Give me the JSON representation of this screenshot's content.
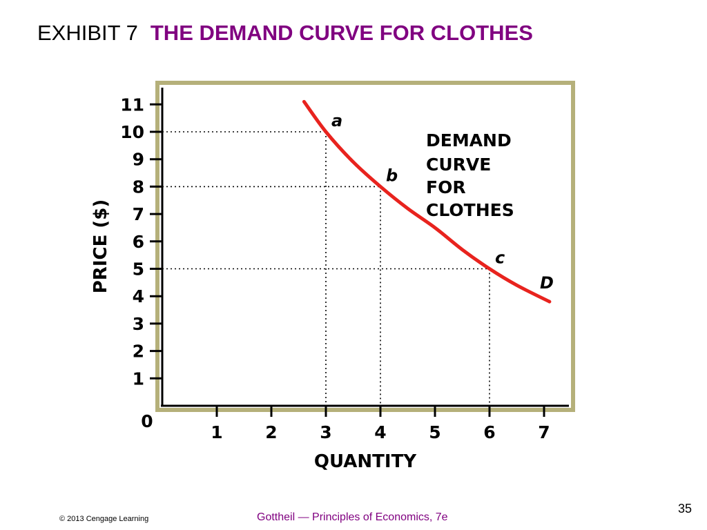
{
  "header": {
    "exhibit": "EXHIBIT 7",
    "title": "THE DEMAND CURVE FOR CLOTHES"
  },
  "footer": {
    "copyright": "© 2013 Cengage Learning",
    "book": "Gottheil — Principles of Economics, 7e",
    "slide_number": "35"
  },
  "chart_data": {
    "type": "line",
    "xlabel": "QUANTITY",
    "ylabel": "PRICE ($)",
    "xlim": [
      0,
      7.6
    ],
    "ylim": [
      0,
      11.4
    ],
    "x_ticks": [
      "1",
      "2",
      "3",
      "4",
      "5",
      "6",
      "7"
    ],
    "y_ticks": [
      "1",
      "2",
      "3",
      "4",
      "5",
      "6",
      "7",
      "8",
      "9",
      "10",
      "11"
    ],
    "origin_label": "0",
    "grid": false,
    "series": [
      {
        "name": "D",
        "color": "#e8231e",
        "x": [
          2.6,
          3.0,
          3.5,
          4.0,
          4.5,
          5.0,
          5.5,
          6.0,
          6.5,
          7.1
        ],
        "y": [
          11.1,
          10.0,
          8.9,
          8.0,
          7.2,
          6.5,
          5.7,
          5.0,
          4.4,
          3.8
        ]
      }
    ],
    "points": [
      {
        "label": "a",
        "x": 3,
        "y": 10
      },
      {
        "label": "b",
        "x": 4,
        "y": 8
      },
      {
        "label": "c",
        "x": 6,
        "y": 5
      }
    ],
    "annotation": [
      "DEMAND",
      "CURVE",
      "FOR",
      "CLOTHES"
    ],
    "curve_label": "D",
    "frame_color": "#b5b07a"
  }
}
